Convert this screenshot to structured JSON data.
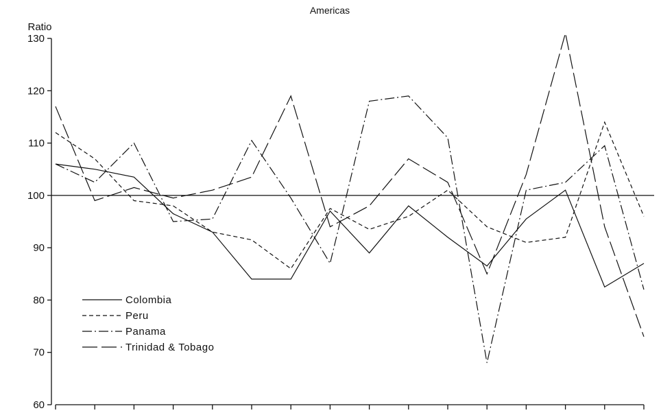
{
  "chart_data": {
    "type": "line",
    "title": "Americas",
    "ylabel": "Ratio",
    "xlabel": "",
    "ylim": [
      60,
      130
    ],
    "yticks": [
      60,
      70,
      80,
      90,
      100,
      110,
      120,
      130
    ],
    "x": [
      1,
      2,
      3,
      4,
      5,
      6,
      7,
      8,
      9,
      10,
      11,
      12,
      13,
      14,
      15,
      16
    ],
    "reference_line": 100,
    "legend_position": "lower-left",
    "series": [
      {
        "name": "Colombia",
        "style": "solid",
        "values": [
          106,
          105,
          103.5,
          96.5,
          93,
          84,
          84,
          97,
          89,
          98,
          92,
          86.5,
          95.5,
          101,
          82.5,
          87
        ]
      },
      {
        "name": "Peru",
        "style": "dashed-short",
        "values": [
          112,
          107,
          99,
          98,
          93,
          91.5,
          86,
          97.5,
          93.5,
          96,
          101,
          94,
          91,
          92,
          114,
          96
        ]
      },
      {
        "name": "Panama",
        "style": "dash-dot",
        "values": [
          106,
          102.5,
          110,
          95,
          95.5,
          110.5,
          99.5,
          87,
          118,
          119,
          111,
          68,
          101,
          102.5,
          109.5,
          82
        ]
      },
      {
        "name": "Trinidad & Tobago",
        "style": "dashed-long",
        "values": [
          117,
          99,
          101.5,
          99.5,
          101,
          103.5,
          119,
          94,
          98,
          107,
          102.5,
          85,
          104,
          131,
          94,
          73
        ]
      }
    ]
  }
}
